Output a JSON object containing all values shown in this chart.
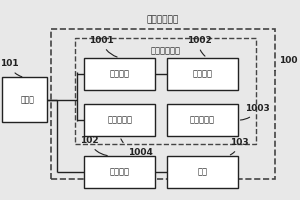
{
  "bg_color": "#e8e8e8",
  "outer_dashed_label": "加热控制电路",
  "inner_dashed_label": "加热控制电路",
  "processor_label": "处理器",
  "font_main": 7.5,
  "font_small": 6.0,
  "font_annot": 6.5,
  "line_color": "#222222",
  "dashed_color": "#444444",
  "white": "#ffffff"
}
